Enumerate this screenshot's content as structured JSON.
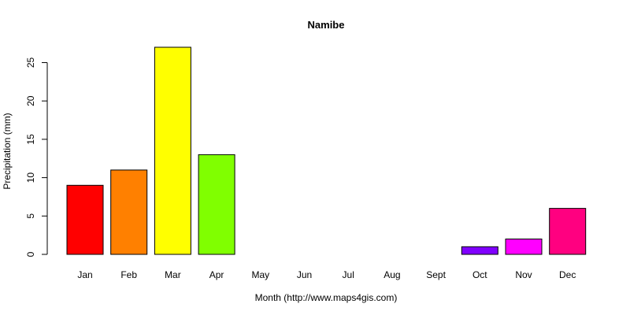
{
  "chart_data": {
    "type": "bar",
    "title": "Namibe",
    "xlabel": "Month (http://www.maps4gis.com)",
    "ylabel": "Precipitation (mm)",
    "categories": [
      "Jan",
      "Feb",
      "Mar",
      "Apr",
      "May",
      "Jun",
      "Jul",
      "Aug",
      "Sept",
      "Oct",
      "Nov",
      "Dec"
    ],
    "values": [
      9,
      11,
      27,
      13,
      0,
      0,
      0,
      0,
      0,
      1,
      2,
      6
    ],
    "colors": [
      "#ff0000",
      "#ff8000",
      "#ffff00",
      "#80ff00",
      "#00ff00",
      "#00ff80",
      "#00ffff",
      "#0080ff",
      "#0000ff",
      "#8000ff",
      "#ff00ff",
      "#ff0080"
    ],
    "yticks": [
      0,
      5,
      10,
      15,
      20,
      25
    ],
    "ylim": [
      0,
      27
    ],
    "grid": false,
    "legend": "none"
  }
}
